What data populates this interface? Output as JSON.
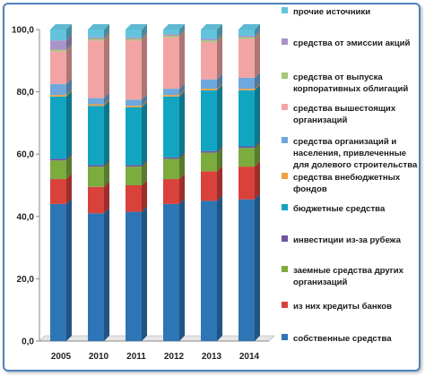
{
  "chart_data": {
    "type": "bar",
    "stacked": true,
    "categories": [
      "2005",
      "2010",
      "2011",
      "2012",
      "2013",
      "2014"
    ],
    "ylim": [
      0,
      100
    ],
    "yticks": [
      "0,0",
      "20,0",
      "40,0",
      "60,0",
      "80,0",
      "100,0"
    ],
    "grid": false,
    "legend_position": "right",
    "series": [
      {
        "name": "собственные средства",
        "color": "#2e75b6",
        "values": [
          44.0,
          41.0,
          41.5,
          44.0,
          45.0,
          45.5
        ]
      },
      {
        "name": "из них кредиты банков",
        "color": "#d9413b",
        "values": [
          8.0,
          8.5,
          8.5,
          8.0,
          9.5,
          10.5
        ]
      },
      {
        "name": "заемные средства других организаций",
        "color": "#7cab3e",
        "values": [
          6.0,
          6.5,
          6.0,
          6.5,
          6.0,
          6.0
        ]
      },
      {
        "name": "инвестиции из-за рубежа",
        "color": "#7054a0",
        "values": [
          0.5,
          0.5,
          0.5,
          0.5,
          0.5,
          0.5
        ]
      },
      {
        "name": "бюджетные средства",
        "color": "#12a5c2",
        "values": [
          20.0,
          19.0,
          18.5,
          19.5,
          19.5,
          18.0
        ]
      },
      {
        "name": "средства внебюджетных фондов",
        "color": "#f0a040",
        "values": [
          0.5,
          0.5,
          0.5,
          0.5,
          0.5,
          0.5
        ]
      },
      {
        "name": "средства организаций и населения, привлеченные для долевого строительства",
        "color": "#6fa8dc",
        "values": [
          3.5,
          2.0,
          2.0,
          2.0,
          3.0,
          3.5
        ]
      },
      {
        "name": "средства вышестоящих организаций",
        "color": "#f2a4a4",
        "values": [
          10.5,
          18.5,
          19.0,
          16.5,
          12.0,
          12.5
        ]
      },
      {
        "name": "средства от выпуска корпоративных облигаций",
        "color": "#a4c873",
        "values": [
          0.5,
          0.5,
          0.5,
          0.5,
          0.5,
          0.5
        ]
      },
      {
        "name": "средства от эмиссии акций",
        "color": "#a993c9",
        "values": [
          3.0,
          0.5,
          0.5,
          0.5,
          0.5,
          0.5
        ]
      },
      {
        "name": "прочие источники",
        "color": "#63c3dc",
        "values": [
          3.5,
          2.5,
          2.5,
          1.5,
          3.0,
          2.0
        ]
      }
    ],
    "legend_lines": [
      [
        "прочие источники"
      ],
      [
        "средства от эмиссии акций"
      ],
      [
        "средства от выпуска",
        "корпоративных облигаций"
      ],
      [
        "средства вышестоящих",
        "организаций"
      ],
      [
        "средства организаций и",
        "населения, привлеченные",
        "для долевого строительства"
      ],
      [
        "средства  внебюджетных",
        "фондов"
      ],
      [
        "бюджетные средства"
      ],
      [
        "инвестиции из-за рубежа"
      ],
      [
        "заемные средства других",
        "организаций"
      ],
      [
        "из них кредиты банков"
      ],
      [
        "собственные средства"
      ]
    ]
  }
}
